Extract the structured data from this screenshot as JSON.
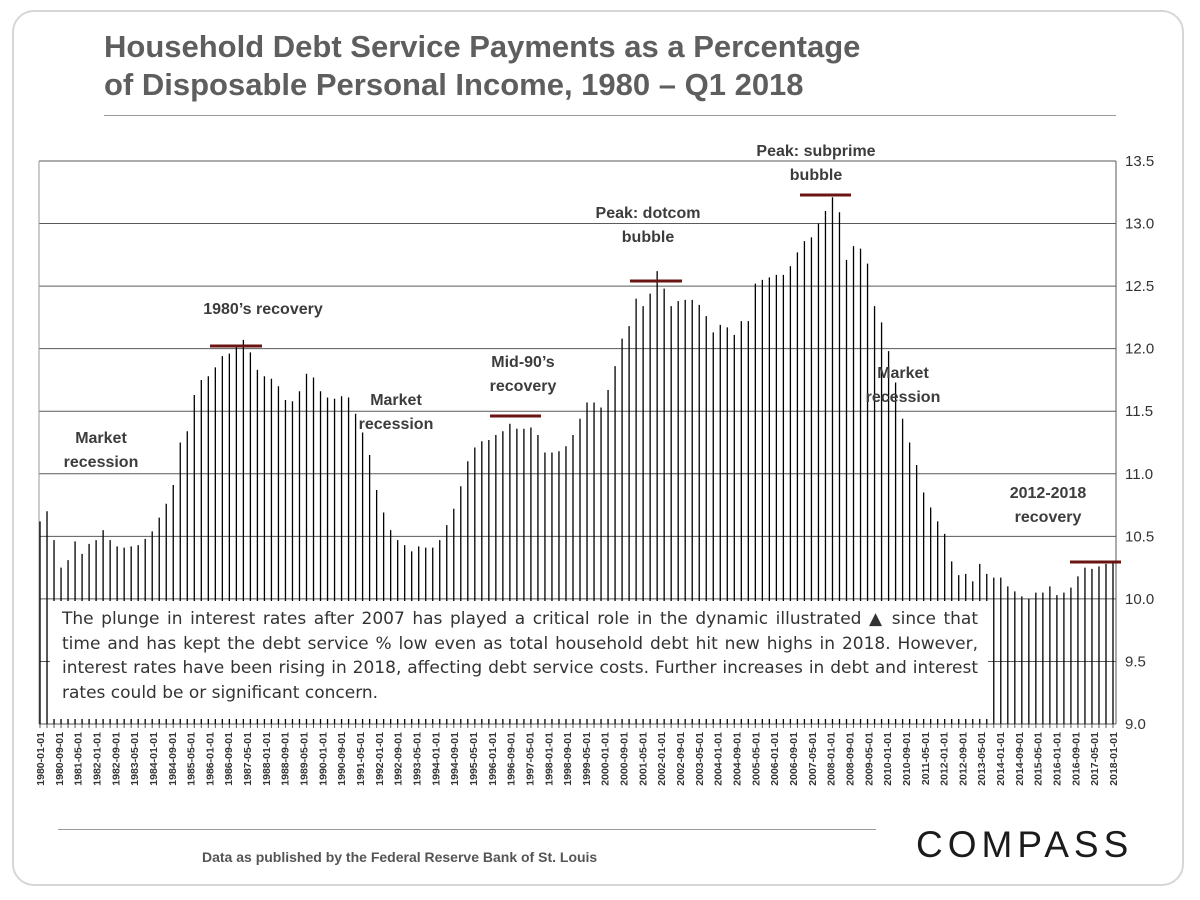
{
  "title_line1": "Household Debt Service Payments as a Percentage",
  "title_line2": "of Disposable Personal Income, 1980 – Q1 2018",
  "note": "The plunge in interest rates after 2007 has played a critical role in the dynamic illustrated ▲ since that time and has kept the debt service % low even as total household debt hit new highs in 2018.  However, interest rates have been rising in 2018, affecting debt service costs. Further increases in debt and interest rates could be or significant concern.",
  "source": "Data as published by the Federal Reserve Bank of St. Louis",
  "logo": "COMPASS",
  "colors": {
    "bar": "#000000",
    "grid": "#5a5a5a",
    "peak_marker": "#6b1414",
    "annotation": "#3c3c3c"
  },
  "chart_data": {
    "type": "bar",
    "title": "Household Debt Service Payments as a Percentage of Disposable Personal Income, 1980 – Q1 2018",
    "xlabel": "",
    "ylabel": "",
    "y_axis_side": "right",
    "ylim": [
      9.0,
      13.5
    ],
    "yticks": [
      "9.0",
      "9.5",
      "10.0",
      "10.5",
      "11.0",
      "11.5",
      "12.0",
      "12.5",
      "13.0",
      "13.5"
    ],
    "grid": true,
    "start_quarter": "1980-01-01",
    "frequency": "quarterly",
    "xtick_labels": [
      "1980-01-01",
      "1980-09-01",
      "1981-05-01",
      "1982-01-01",
      "1982-09-01",
      "1983-05-01",
      "1984-01-01",
      "1984-09-01",
      "1985-05-01",
      "1986-01-01",
      "1986-09-01",
      "1987-05-01",
      "1988-01-01",
      "1988-09-01",
      "1989-05-01",
      "1990-01-01",
      "1990-09-01",
      "1991-05-01",
      "1992-01-01",
      "1992-09-01",
      "1993-05-01",
      "1994-01-01",
      "1994-09-01",
      "1995-05-01",
      "1996-01-01",
      "1996-09-01",
      "1997-05-01",
      "1998-01-01",
      "1998-09-01",
      "1999-05-01",
      "2000-01-01",
      "2000-09-01",
      "2001-05-01",
      "2002-01-01",
      "2002-09-01",
      "2003-05-01",
      "2004-01-01",
      "2004-09-01",
      "2005-05-01",
      "2006-01-01",
      "2006-09-01",
      "2007-05-01",
      "2008-01-01",
      "2008-09-01",
      "2009-05-01",
      "2010-01-01",
      "2010-09-01",
      "2011-05-01",
      "2012-01-01",
      "2012-09-01",
      "2013-05-01",
      "2014-01-01",
      "2014-09-01",
      "2015-05-01",
      "2016-01-01",
      "2016-09-01",
      "2017-05-01",
      "2018-01-01"
    ],
    "values": [
      10.62,
      10.7,
      10.47,
      10.25,
      10.31,
      10.46,
      10.36,
      10.44,
      10.47,
      10.55,
      10.47,
      10.42,
      10.41,
      10.42,
      10.43,
      10.48,
      10.54,
      10.65,
      10.76,
      10.91,
      11.25,
      11.34,
      11.63,
      11.75,
      11.78,
      11.85,
      11.94,
      11.96,
      12.02,
      12.07,
      11.97,
      11.83,
      11.78,
      11.76,
      11.7,
      11.59,
      11.58,
      11.66,
      11.8,
      11.77,
      11.66,
      11.61,
      11.6,
      11.62,
      11.61,
      11.48,
      11.33,
      11.15,
      10.87,
      10.69,
      10.55,
      10.47,
      10.43,
      10.38,
      10.42,
      10.41,
      10.41,
      10.47,
      10.59,
      10.72,
      10.9,
      11.1,
      11.21,
      11.26,
      11.27,
      11.31,
      11.34,
      11.4,
      11.36,
      11.36,
      11.37,
      11.31,
      11.17,
      11.17,
      11.18,
      11.22,
      11.31,
      11.44,
      11.57,
      11.57,
      11.53,
      11.67,
      11.86,
      12.08,
      12.18,
      12.4,
      12.34,
      12.44,
      12.62,
      12.48,
      12.34,
      12.38,
      12.39,
      12.39,
      12.35,
      12.26,
      12.13,
      12.19,
      12.17,
      12.11,
      12.22,
      12.22,
      12.52,
      12.55,
      12.57,
      12.59,
      12.59,
      12.66,
      12.77,
      12.86,
      12.89,
      13.0,
      13.1,
      13.21,
      13.09,
      12.71,
      12.82,
      12.8,
      12.68,
      12.34,
      12.21,
      11.98,
      11.73,
      11.44,
      11.25,
      11.07,
      10.85,
      10.73,
      10.62,
      10.52,
      10.3,
      10.19,
      10.2,
      10.14,
      10.28,
      10.2,
      10.17,
      10.17,
      10.1,
      10.06,
      10.02,
      10.0,
      10.05,
      10.05,
      10.1,
      10.03,
      10.05,
      10.09,
      10.18,
      10.25,
      10.24,
      10.26,
      10.28,
      10.3
    ],
    "annotations": [
      {
        "text": "Market\nrecession"
      },
      {
        "text": "1980’s recovery"
      },
      {
        "text": "Market\nrecession"
      },
      {
        "text": "Mid-90’s\nrecovery"
      },
      {
        "text": "Peak: dotcom\nbubble"
      },
      {
        "text": "Peak: subprime\nbubble"
      },
      {
        "text": "Market\nrecession"
      },
      {
        "text": "2012-2018\nrecovery"
      }
    ]
  }
}
